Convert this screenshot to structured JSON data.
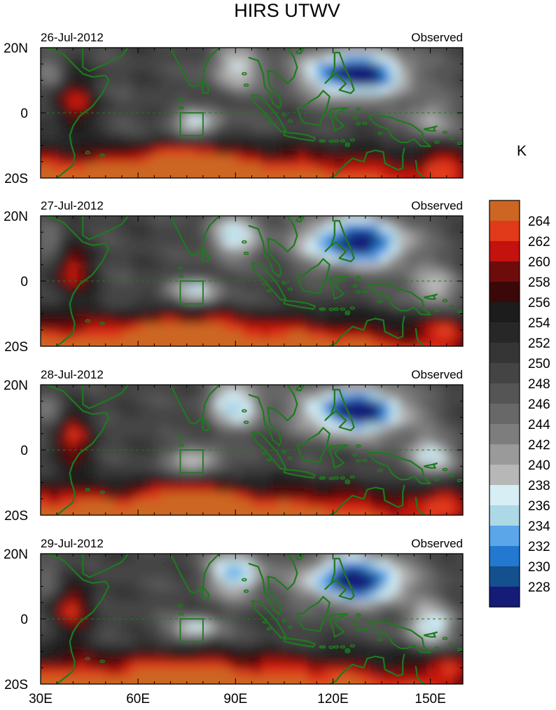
{
  "title": "HIRS UTWV",
  "colorbar": {
    "unit": "K",
    "levels": [
      264,
      262,
      260,
      258,
      256,
      254,
      252,
      250,
      248,
      246,
      244,
      242,
      240,
      238,
      236,
      234,
      232,
      230,
      228
    ],
    "colors": [
      "#cc6622",
      "#e03a1a",
      "#c4120e",
      "#6e0c0c",
      "#3a0808",
      "#1c1c1c",
      "#272727",
      "#353535",
      "#444444",
      "#555555",
      "#686868",
      "#7d7d7d",
      "#9a9a9a",
      "#b7b7b7",
      "#d6eef4",
      "#add8e6",
      "#5aa6e8",
      "#2378d0",
      "#14508e",
      "#141c78"
    ]
  },
  "chart_data": {
    "type": "heatmap",
    "x_ticks": [
      "30E",
      "60E",
      "90E",
      "120E",
      "150E"
    ],
    "x_tick_values": [
      30,
      60,
      90,
      120,
      150
    ],
    "xlim": [
      30,
      160
    ],
    "y_ticks": [
      "20N",
      "0",
      "20S"
    ],
    "y_tick_values": [
      20,
      0,
      -20
    ],
    "ylim": [
      -20,
      20
    ],
    "panels": [
      {
        "date": "26-Jul-2012",
        "label": "Observed"
      },
      {
        "date": "27-Jul-2012",
        "label": "Observed"
      },
      {
        "date": "28-Jul-2012",
        "label": "Observed"
      },
      {
        "date": "29-Jul-2012",
        "label": "Observed"
      }
    ],
    "box_region": {
      "lon": [
        73,
        80
      ],
      "lat": [
        -7,
        0
      ]
    }
  }
}
